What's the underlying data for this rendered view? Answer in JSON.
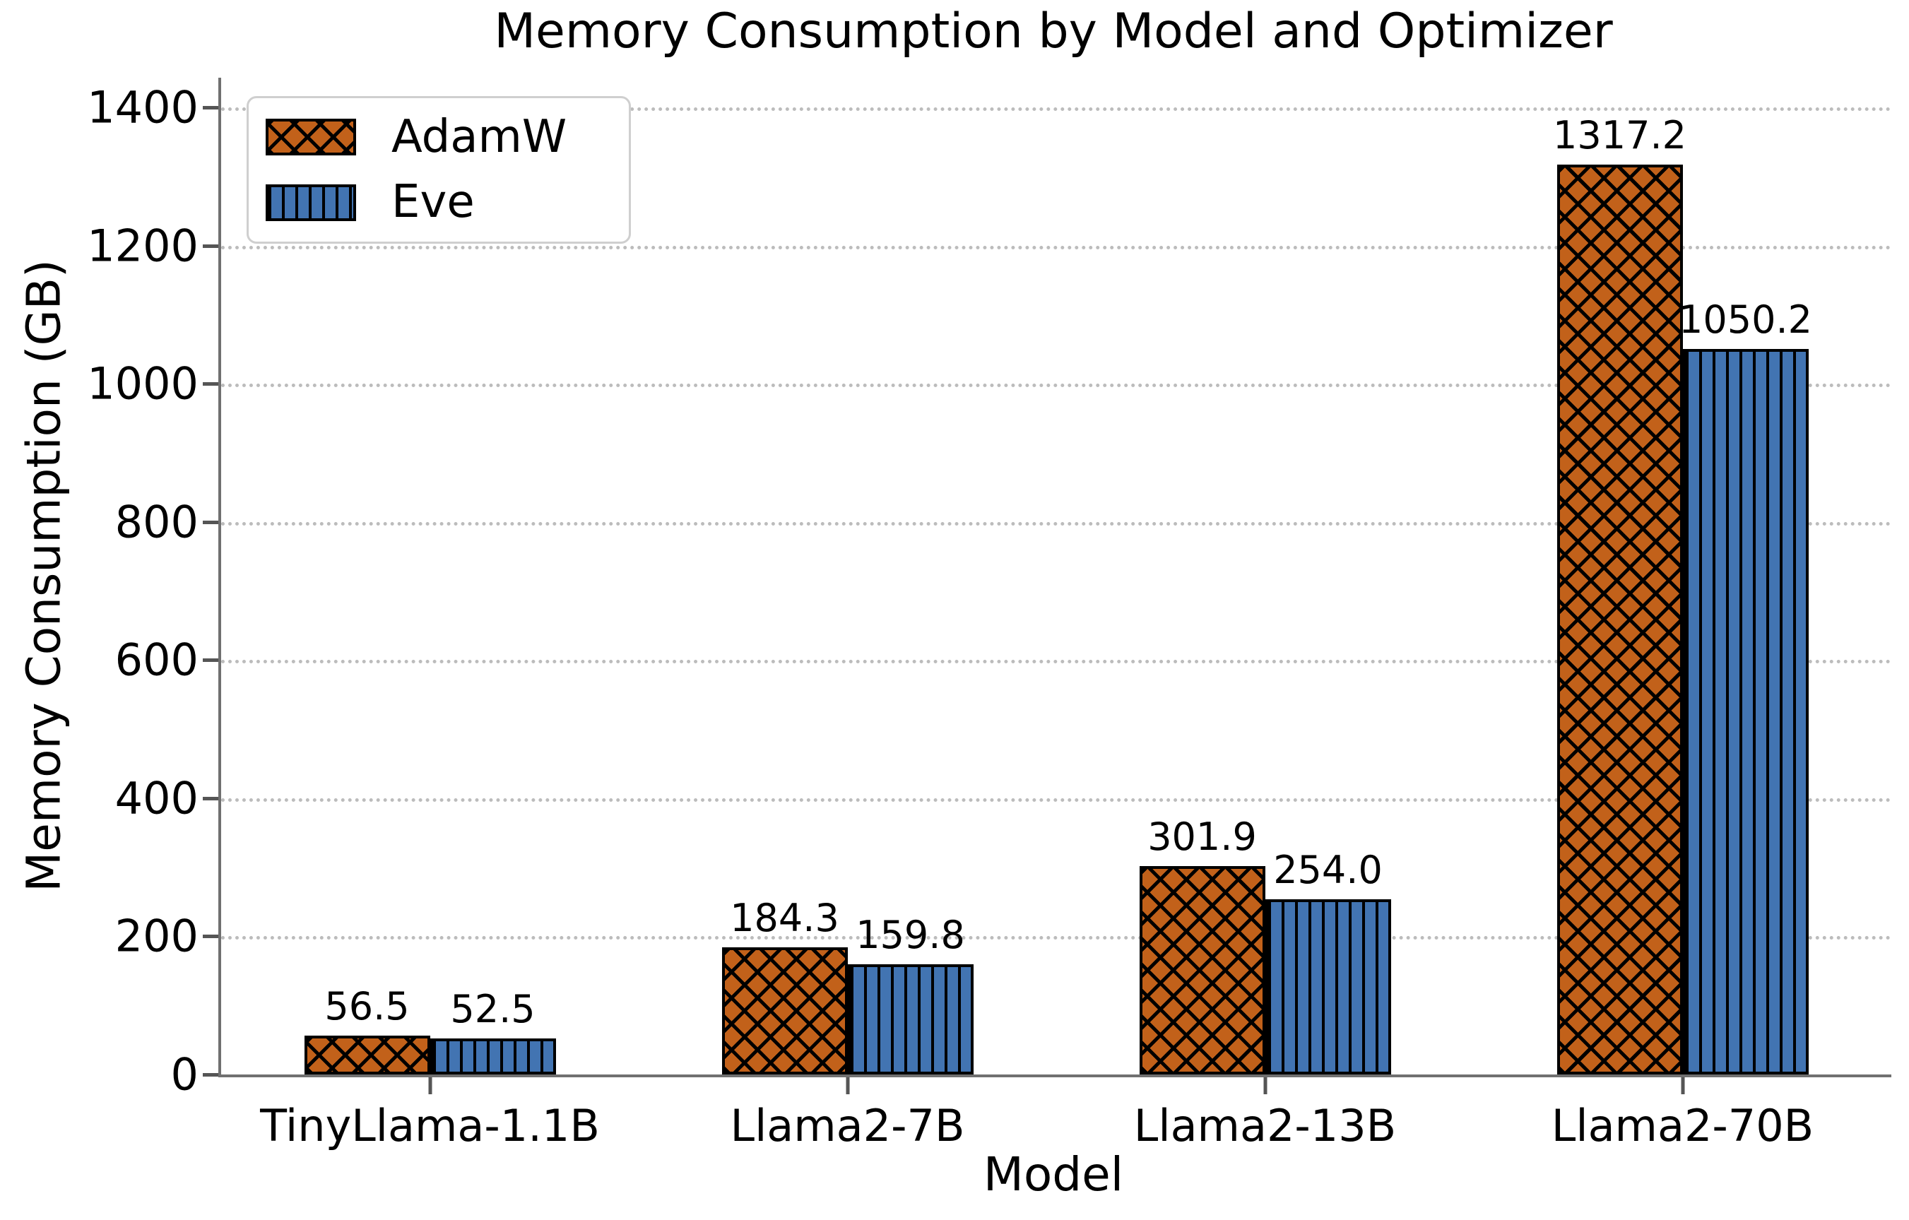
{
  "chart_data": {
    "type": "bar",
    "title": "Memory Consumption by Model and Optimizer",
    "xlabel": "Model",
    "ylabel": "Memory Consumption (GB)",
    "categories": [
      "TinyLlama-1.1B",
      "Llama2-7B",
      "Llama2-13B",
      "Llama2-70B"
    ],
    "series": [
      {
        "name": "AdamW",
        "values": [
          56.5,
          184.3,
          301.9,
          1317.2
        ],
        "color": "#C2611A",
        "hatch": "xx"
      },
      {
        "name": "Eve",
        "values": [
          52.5,
          159.8,
          254.0,
          1050.2
        ],
        "color": "#4274B2",
        "hatch": "||"
      }
    ],
    "yticks": [
      0,
      200,
      400,
      600,
      800,
      1000,
      1200,
      1400
    ],
    "ylim": [
      0,
      1443
    ],
    "grid": "horizontal-dotted",
    "legend_position": "upper left",
    "value_labels": true,
    "value_label_format": "1-decimal",
    "colors": {
      "bar_edge": "#000000",
      "axis_spine": "#707070",
      "gridline": "#bcbcbc",
      "tick": "#555555",
      "text": "#000000",
      "legend_border": "#cfcfcf",
      "background": "#ffffff"
    }
  }
}
